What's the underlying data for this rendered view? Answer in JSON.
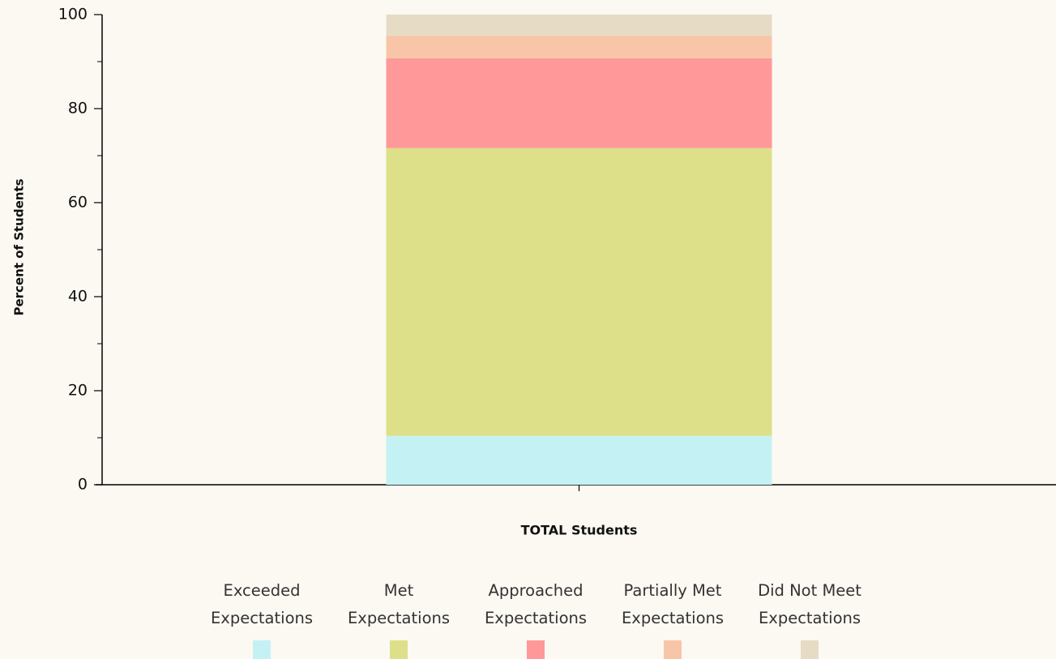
{
  "chart_data": {
    "type": "bar",
    "stacked": true,
    "y_axis_label": "Percent of Students",
    "categories": [
      "TOTAL Students"
    ],
    "series": [
      {
        "name": "Exceeded Expectations",
        "color": "#c4f2f4",
        "values": [
          10.4
        ]
      },
      {
        "name": "Met Expectations",
        "color": "#dde088",
        "values": [
          61.2
        ]
      },
      {
        "name": "Approached Expectations",
        "color": "#ff9999",
        "values": [
          19.1
        ]
      },
      {
        "name": "Partially Met Expectations",
        "color": "#f9c5a8",
        "values": [
          4.8
        ]
      },
      {
        "name": "Did Not Meet Expectations",
        "color": "#e6dcc5",
        "values": [
          4.5
        ]
      }
    ],
    "ylim": [
      0,
      100
    ],
    "yticks": [
      0,
      20,
      40,
      60,
      80,
      100
    ]
  }
}
